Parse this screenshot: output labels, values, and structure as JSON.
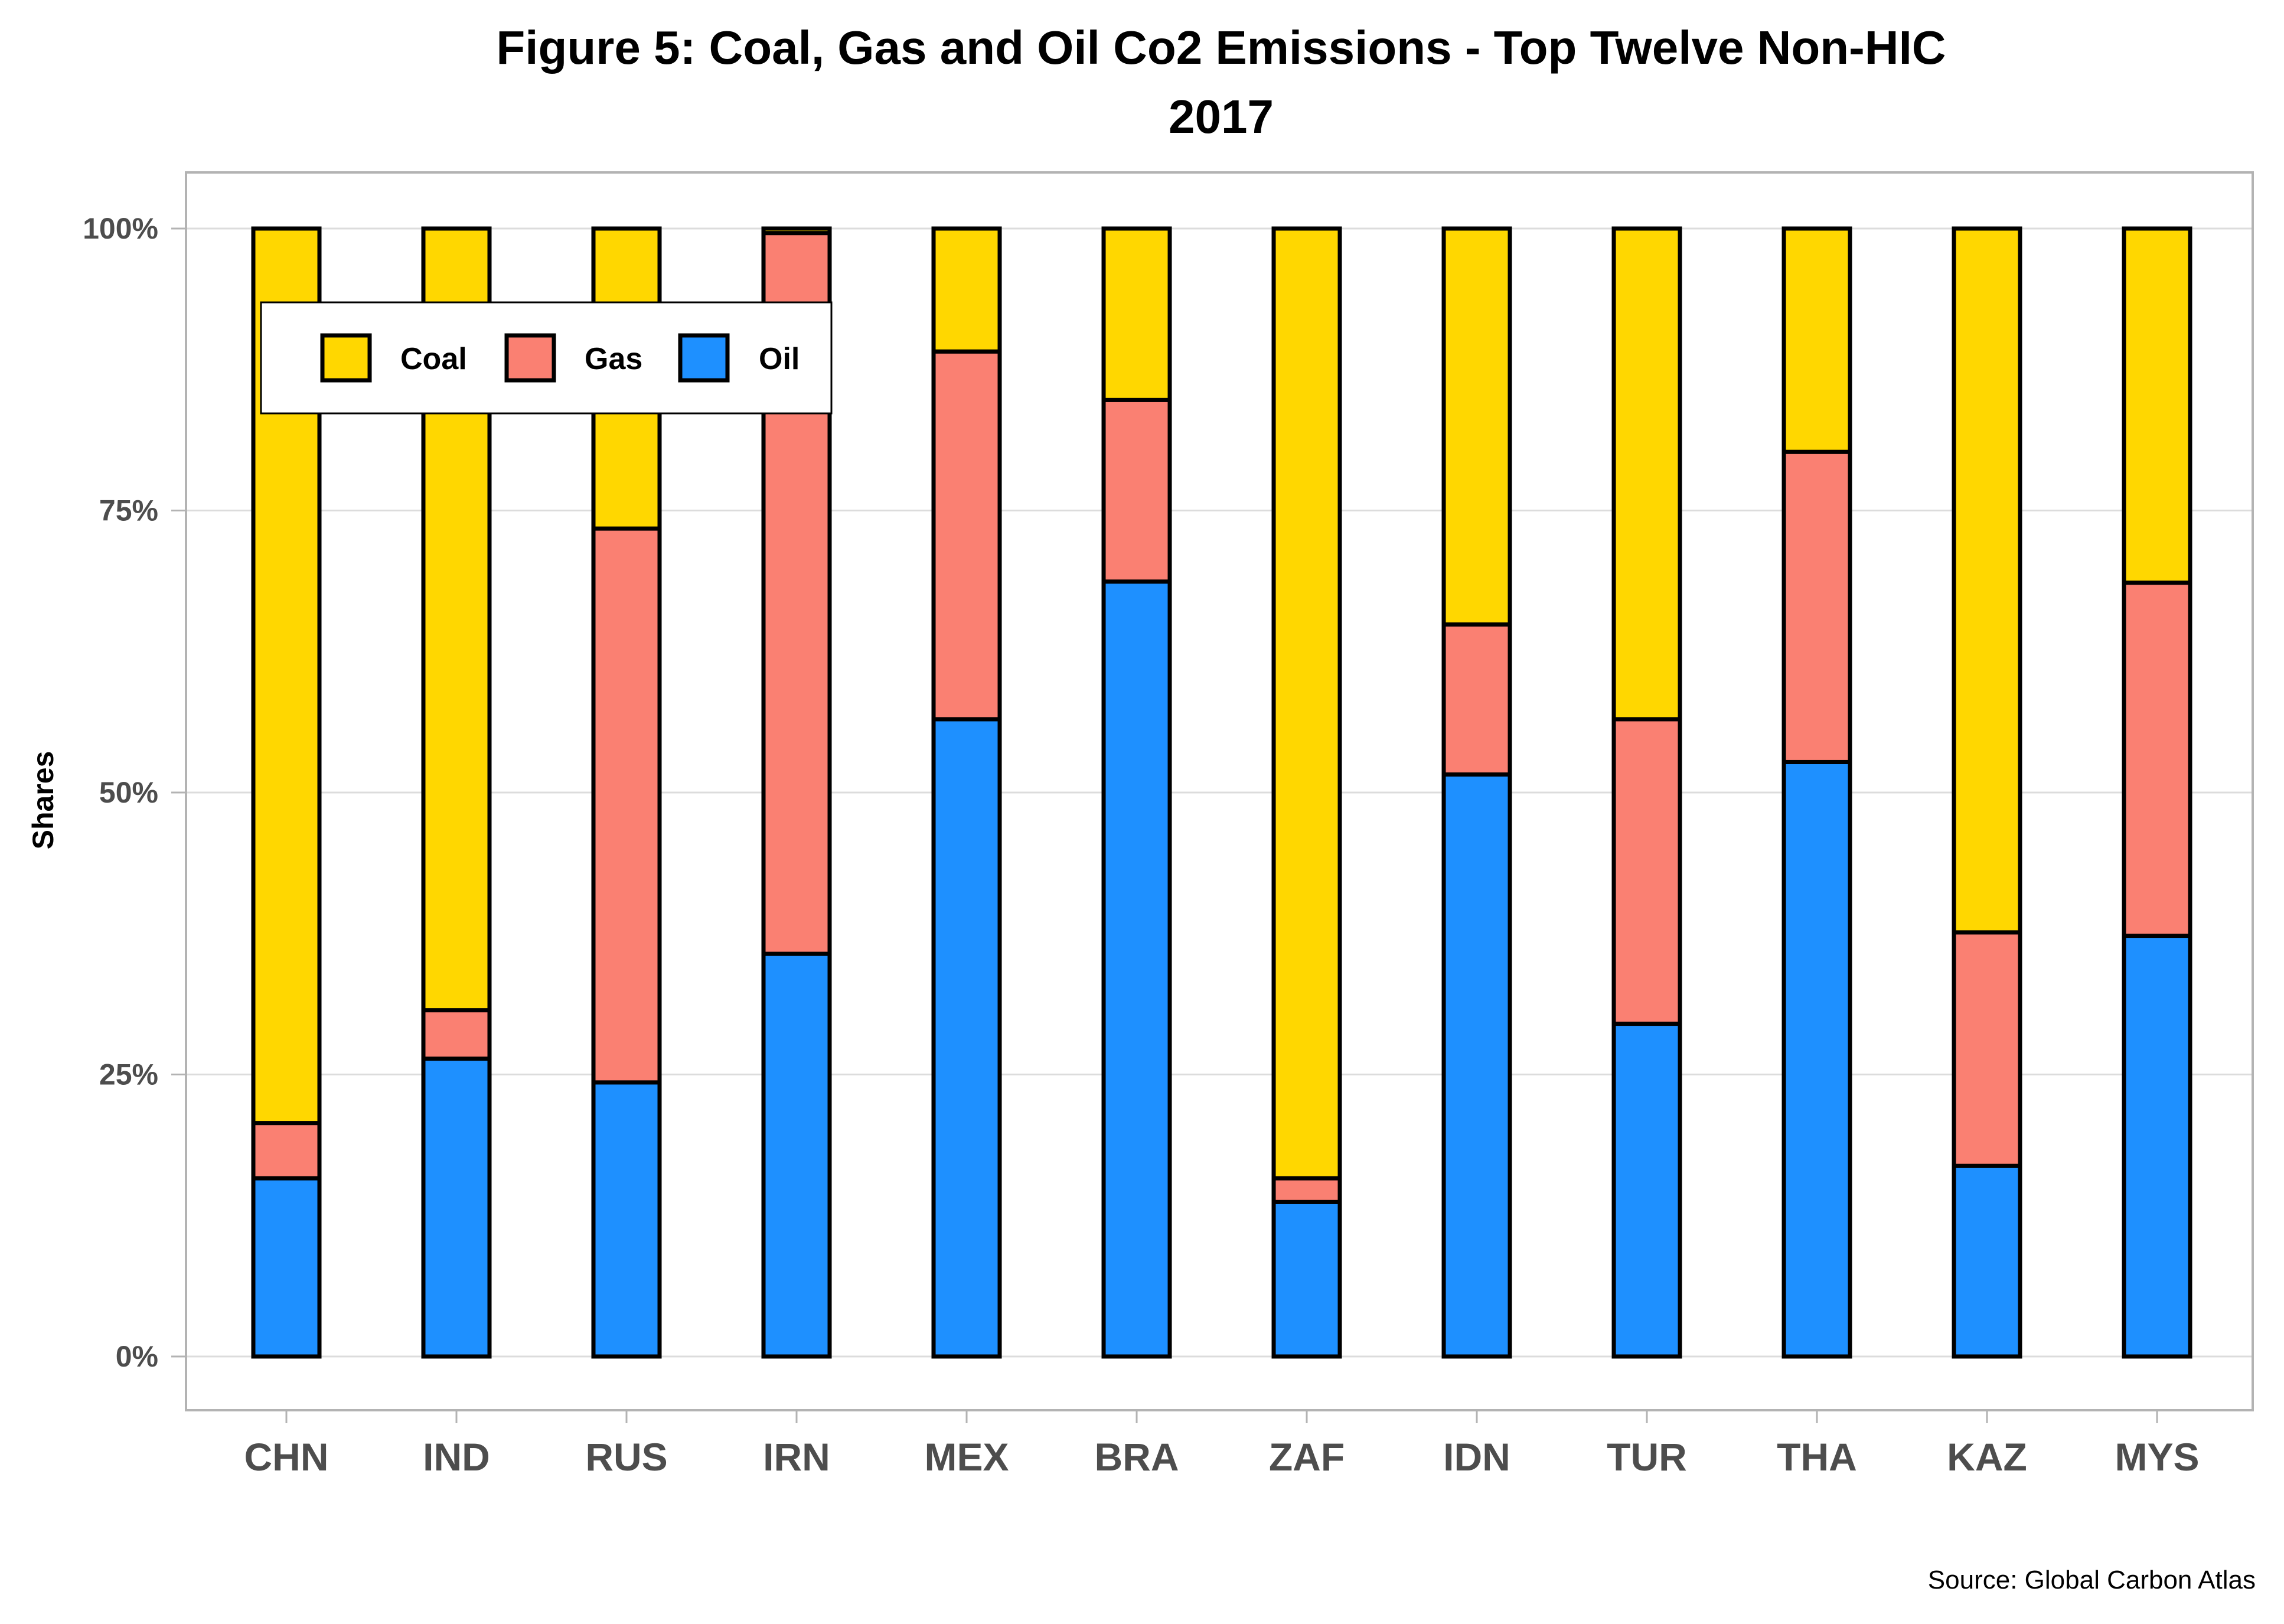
{
  "chart_data": {
    "type": "bar",
    "stacked": true,
    "title": "Figure 5: Coal, Gas and Oil Co2 Emissions - Top Twelve Non-HIC",
    "subtitle": "2017",
    "xlabel": "",
    "ylabel": "Shares",
    "ylim": [
      0,
      1
    ],
    "yticks": [
      0,
      0.25,
      0.5,
      0.75,
      1.0
    ],
    "ytick_labels": [
      "0%",
      "25%",
      "50%",
      "75%",
      "100%"
    ],
    "grid": true,
    "legend_position": "top-left (inside)",
    "categories": [
      "CHN",
      "IND",
      "RUS",
      "IRN",
      "MEX",
      "BRA",
      "ZAF",
      "IDN",
      "TUR",
      "THA",
      "KAZ",
      "MYS"
    ],
    "series": [
      {
        "name": "Oil",
        "color": "#1E90FF",
        "values": [
          15.8,
          26.4,
          24.3,
          35.7,
          56.5,
          68.7,
          13.7,
          51.6,
          29.5,
          52.7,
          16.9,
          37.3
        ]
      },
      {
        "name": "Gas",
        "color": "#FA8072",
        "values": [
          4.9,
          4.3,
          49.1,
          63.9,
          32.6,
          16.1,
          2.1,
          13.3,
          27.0,
          27.5,
          20.7,
          31.3
        ]
      },
      {
        "name": "Coal",
        "color": "#FFD700",
        "values": [
          79.3,
          69.3,
          26.6,
          0.4,
          10.9,
          15.2,
          84.2,
          35.1,
          43.5,
          19.8,
          62.4,
          31.4
        ]
      }
    ],
    "legend": [
      {
        "name": "Coal",
        "color": "#FFD700"
      },
      {
        "name": "Gas",
        "color": "#FA8072"
      },
      {
        "name": "Oil",
        "color": "#1E90FF"
      }
    ],
    "caption": "Source: Global Carbon Atlas"
  }
}
